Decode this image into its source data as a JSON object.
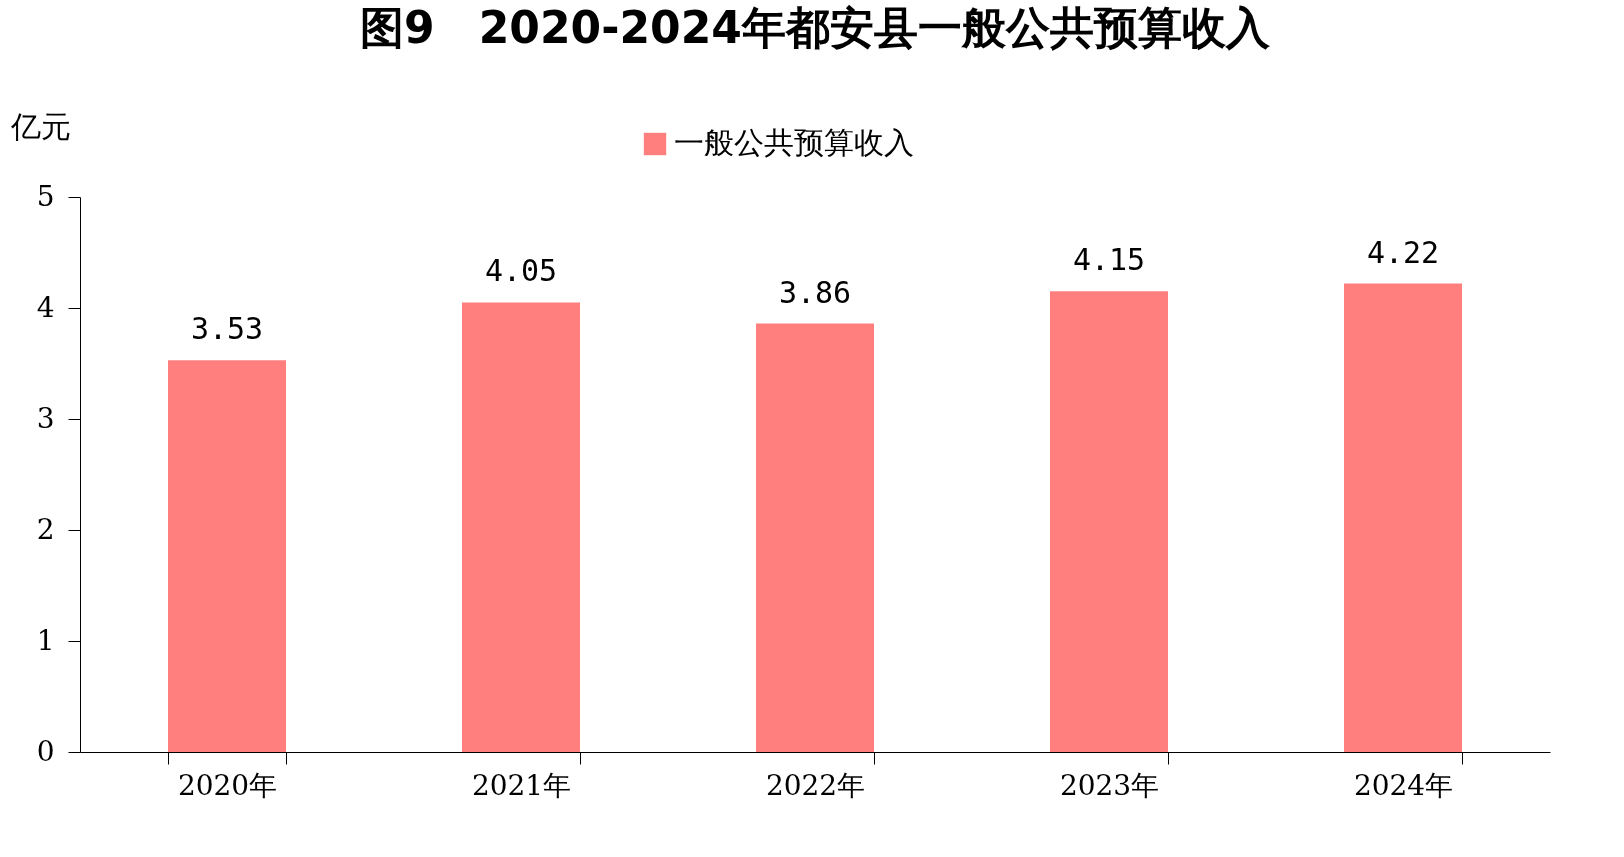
{
  "chart_data": {
    "type": "bar",
    "title": "图9　2020-2024年都安县一般公共预算收入",
    "ylabel": "亿元",
    "categories": [
      "2020年",
      "2021年",
      "2022年",
      "2023年",
      "2024年"
    ],
    "series": [
      {
        "name": "一般公共预算收入",
        "color": "#ff7f7f",
        "values": [
          3.53,
          4.05,
          3.86,
          4.15,
          4.22
        ]
      }
    ],
    "ylim": [
      0,
      5
    ],
    "yticks": [
      0,
      1,
      2,
      3,
      4,
      5
    ],
    "grid": false,
    "legend": "top",
    "data_labels": true
  }
}
